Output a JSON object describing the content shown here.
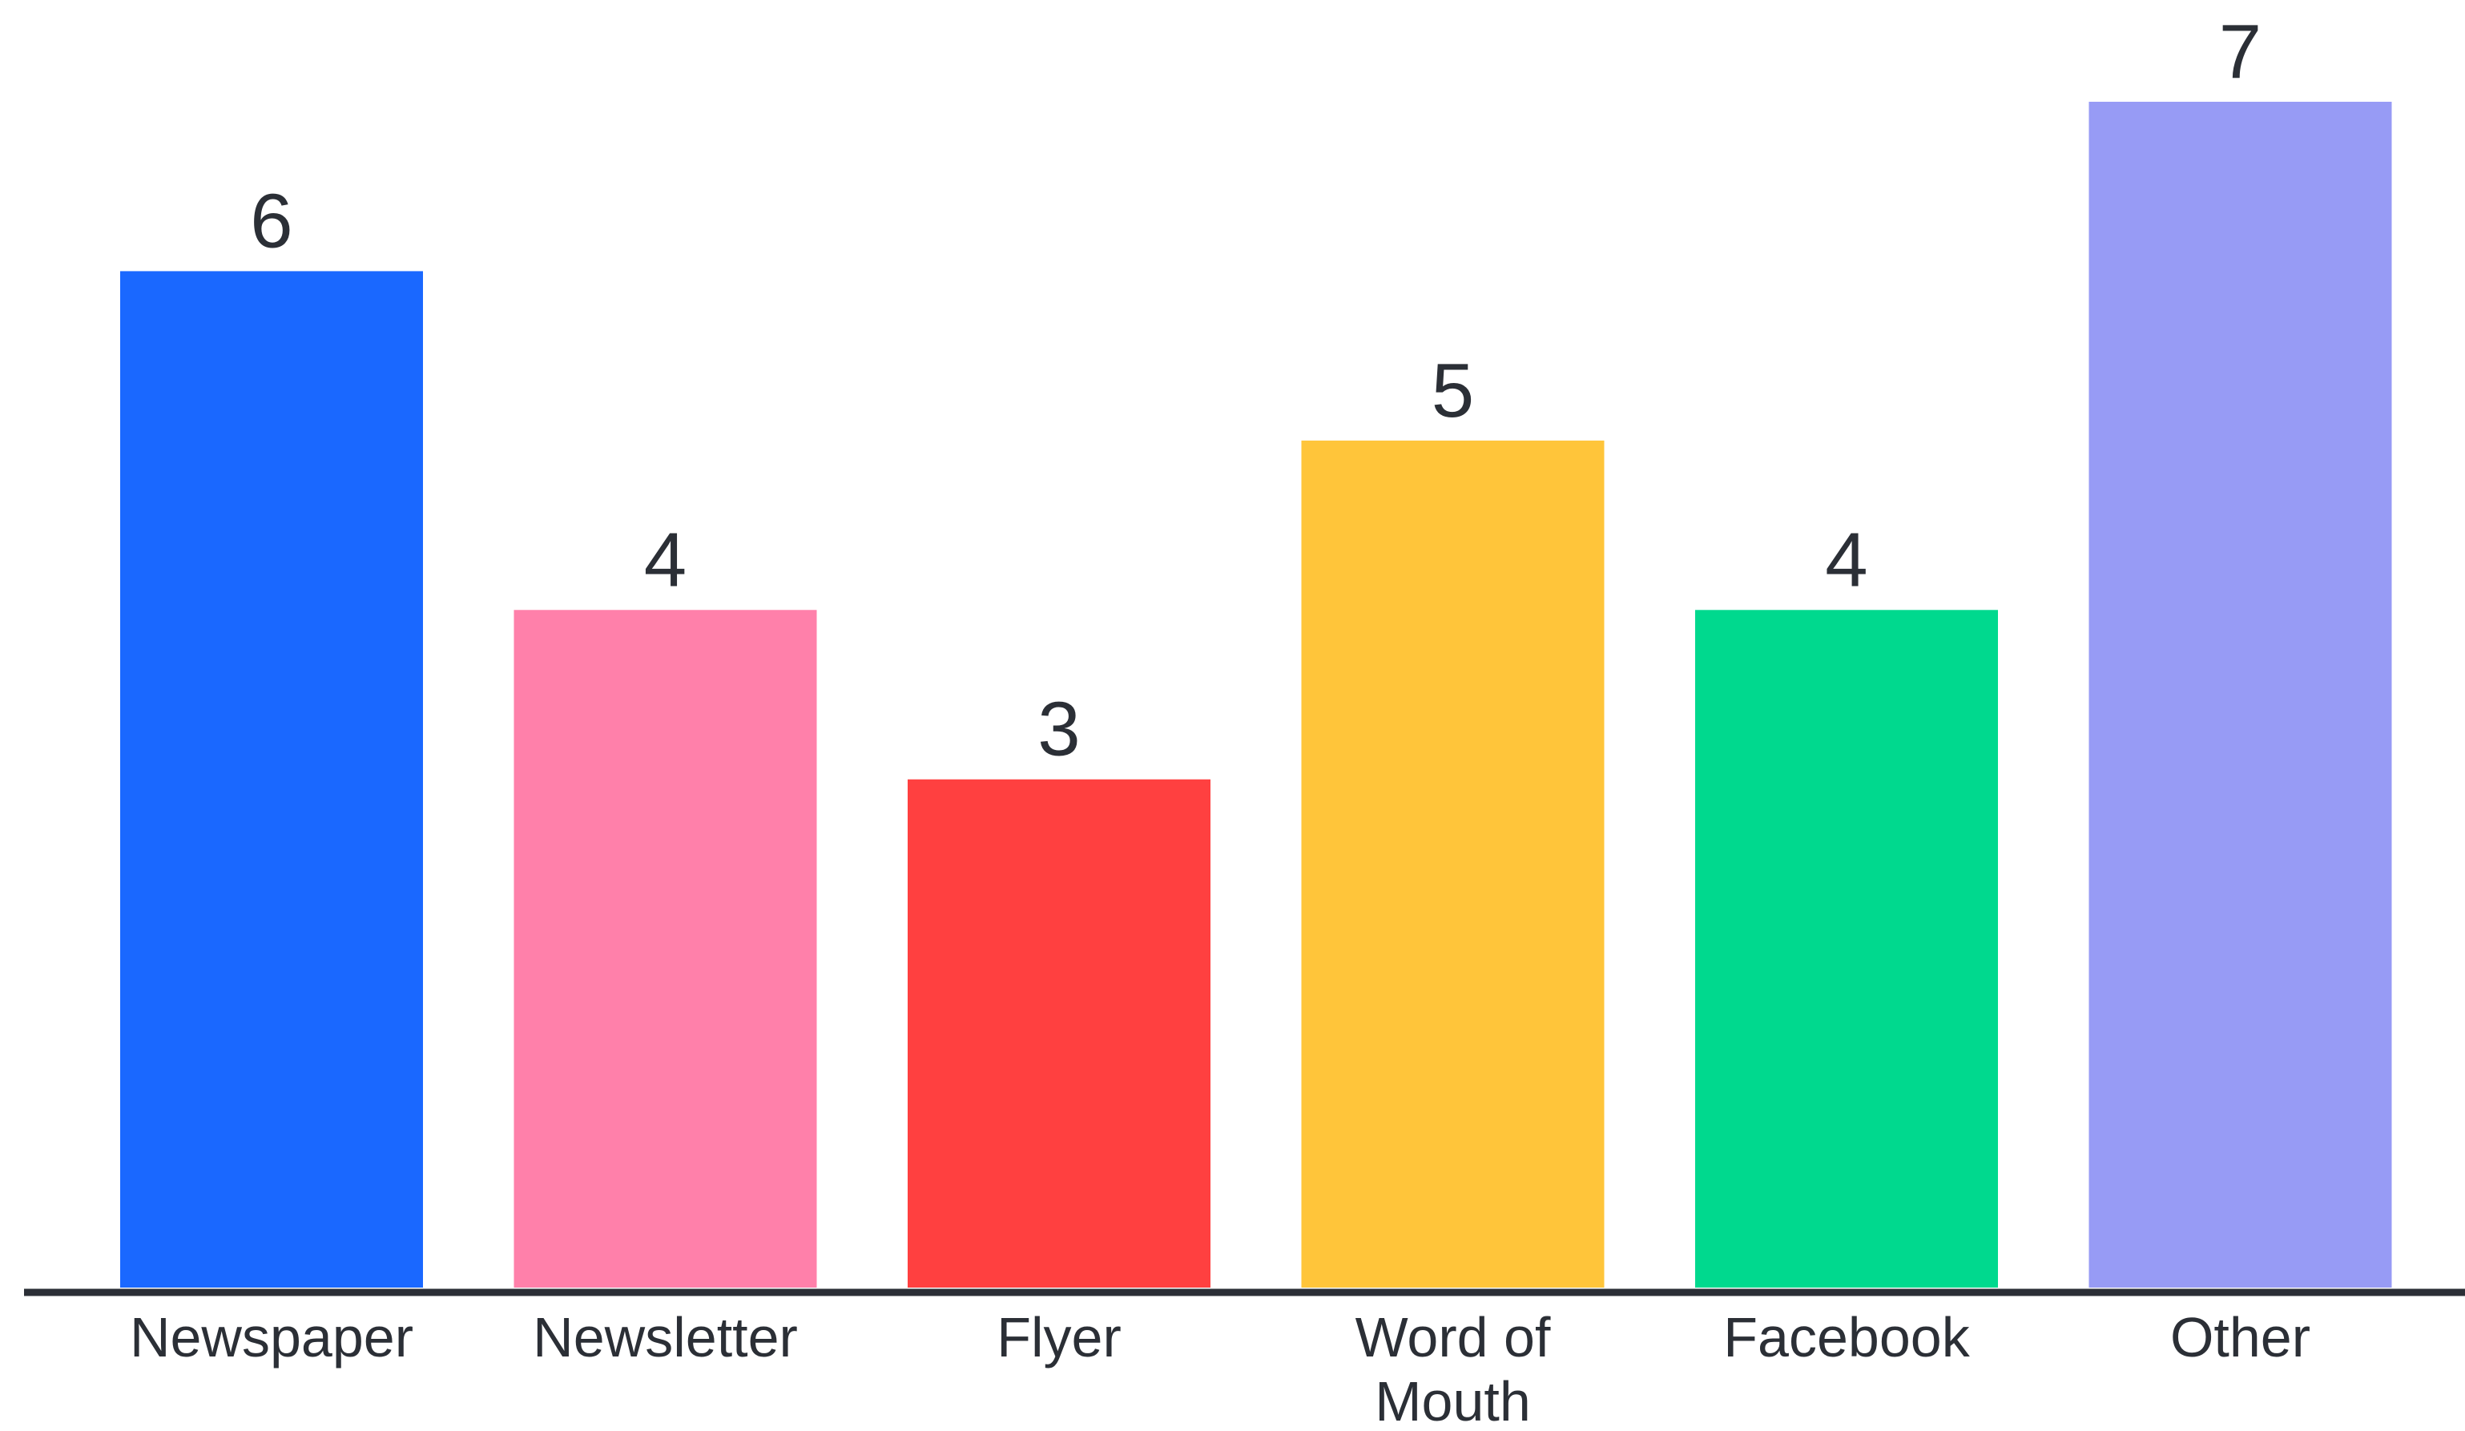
{
  "chart_data": {
    "type": "bar",
    "title": "",
    "xlabel": "",
    "ylabel": "",
    "categories": [
      [
        "Newspaper"
      ],
      [
        "Newsletter"
      ],
      [
        "Flyer"
      ],
      [
        "Word of",
        "Mouth"
      ],
      [
        "Facebook"
      ],
      [
        "Other"
      ]
    ],
    "values": [
      6,
      4,
      3,
      5,
      4,
      7
    ],
    "colors": [
      "#1a68ff",
      "#ff80aa",
      "#ff4040",
      "#ffc53a",
      "#00d98e",
      "#979bf5"
    ],
    "ylim": [
      0,
      7
    ],
    "grid": false,
    "legend": "none",
    "data_labels": true
  }
}
